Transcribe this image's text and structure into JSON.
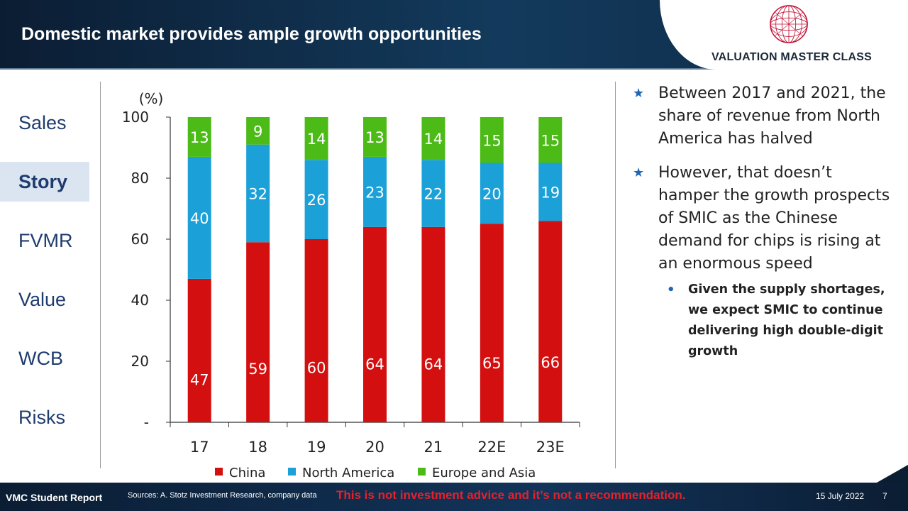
{
  "header": {
    "title": "Domestic market provides ample growth opportunities",
    "logo_text": "VALUATION MASTER CLASS"
  },
  "sidebar": {
    "items": [
      {
        "label": "Sales",
        "active": false
      },
      {
        "label": "Story",
        "active": true
      },
      {
        "label": "FVMR",
        "active": false
      },
      {
        "label": "Value",
        "active": false
      },
      {
        "label": "WCB",
        "active": false
      },
      {
        "label": "Risks",
        "active": false
      }
    ]
  },
  "notes": {
    "bullet1": "Between 2017 and 2021, the share of revenue from North America has halved",
    "bullet2": "However, that doesn’t hamper the growth prospects of SMIC as the Chinese demand for chips is rising at an enormous speed",
    "sub_bullet": "Given the supply shortages, we expect SMIC to continue delivering high double-digit growth",
    "bullet_icon": "star-icon",
    "sub_bullet_icon": "dot-icon"
  },
  "footer": {
    "left": "VMC Student Report",
    "sources": "Sources: A. Stotz Investment Research, company data",
    "disclaimer": "This is not investment advice and it’s not a recommendation.",
    "date": "15 July 2022",
    "page": "7"
  },
  "chart_data": {
    "type": "bar",
    "stacked": true,
    "ylabel": "(%)",
    "ylim": [
      0,
      100
    ],
    "yticks": [
      "-",
      "20",
      "40",
      "60",
      "80",
      "100"
    ],
    "categories": [
      "17",
      "18",
      "19",
      "20",
      "21",
      "22E",
      "23E"
    ],
    "series": [
      {
        "name": "China",
        "color": "#d40f0f",
        "values": [
          47,
          59,
          60,
          64,
          64,
          65,
          66
        ]
      },
      {
        "name": "North America",
        "color": "#1ba1d8",
        "values": [
          40,
          32,
          26,
          23,
          22,
          20,
          19
        ]
      },
      {
        "name": "Europe and Asia",
        "color": "#4cbb17",
        "values": [
          13,
          9,
          14,
          13,
          14,
          15,
          15
        ]
      }
    ],
    "legend_position": "bottom",
    "grid": false
  }
}
